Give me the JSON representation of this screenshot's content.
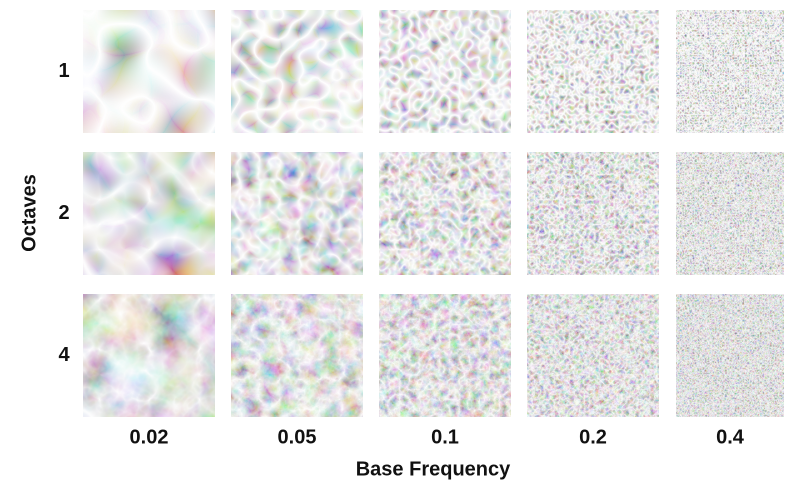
{
  "y_axis_title": "Octaves",
  "x_axis_title": "Base Frequency",
  "octaves": [
    1,
    2,
    4
  ],
  "base_frequencies": [
    0.02,
    0.05,
    0.1,
    0.2,
    0.4
  ]
}
